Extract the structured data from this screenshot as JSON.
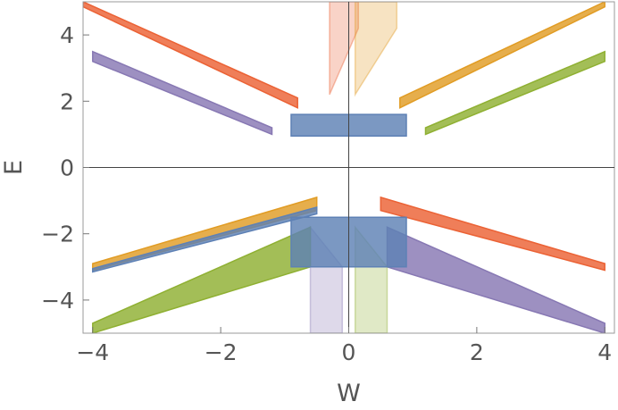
{
  "chart_data": {
    "type": "scatter",
    "title": "",
    "xlabel": "W",
    "ylabel": "E",
    "xlim": [
      -4.15,
      4.15
    ],
    "ylim": [
      -5,
      5
    ],
    "x_ticks": [
      -4,
      -2,
      0,
      2,
      4
    ],
    "y_ticks": [
      -4,
      -2,
      0,
      2,
      4
    ],
    "x_tick_labels": [
      "−4",
      "−2",
      "0",
      "2",
      "4"
    ],
    "y_tick_labels": [
      "−4",
      "−2",
      "0",
      "2",
      "4"
    ],
    "grid": false,
    "legend": "none",
    "frame": true,
    "origin_axes": true,
    "palette": {
      "blue": "#5E81B5",
      "orange": "#E19C24",
      "green": "#8FB032",
      "red": "#EB6235",
      "purple": "#8778B3"
    },
    "series": [
      {
        "color": "#EB6235",
        "bands": [
          {
            "x": [
              -4.15,
              -0.8
            ],
            "y_lo": [
              4.85,
              1.8
            ],
            "y_hi": [
              5.0,
              2.1
            ]
          },
          {
            "x": [
              -0.3,
              0.15
            ],
            "y_lo": [
              2.2,
              4.2
            ],
            "y_hi": [
              5.0,
              5.0
            ],
            "faint": true
          },
          {
            "x": [
              0.5,
              4.0
            ],
            "y_lo": [
              -1.3,
              -3.1
            ],
            "y_hi": [
              -0.9,
              -2.9
            ]
          }
        ]
      },
      {
        "color": "#E19C24",
        "bands": [
          {
            "x": [
              0.8,
              4.0
            ],
            "y_lo": [
              1.8,
              4.85
            ],
            "y_hi": [
              2.1,
              5.0
            ]
          },
          {
            "x": [
              0.1,
              0.75
            ],
            "y_lo": [
              2.2,
              4.2
            ],
            "y_hi": [
              5.0,
              5.0
            ],
            "faint": true
          },
          {
            "x": [
              -4.0,
              -0.5
            ],
            "y_lo": [
              -3.1,
              -1.3
            ],
            "y_hi": [
              -2.9,
              -0.9
            ]
          }
        ]
      },
      {
        "color": "#8778B3",
        "bands": [
          {
            "x": [
              -4.0,
              -1.2
            ],
            "y_lo": [
              3.2,
              1.0
            ],
            "y_hi": [
              3.5,
              1.2
            ]
          },
          {
            "x": [
              -0.6,
              -0.1
            ],
            "y_lo": [
              -5.0,
              -5.0
            ],
            "y_hi": [
              -1.8,
              -3.0
            ],
            "faint": true
          },
          {
            "x": [
              0.6,
              4.0
            ],
            "y_lo": [
              -3.0,
              -5.0
            ],
            "y_hi": [
              -1.8,
              -4.7
            ]
          }
        ]
      },
      {
        "color": "#8FB032",
        "bands": [
          {
            "x": [
              1.2,
              4.0
            ],
            "y_lo": [
              1.0,
              3.2
            ],
            "y_hi": [
              1.2,
              3.5
            ]
          },
          {
            "x": [
              0.1,
              0.6
            ],
            "y_lo": [
              -5.0,
              -5.0
            ],
            "y_hi": [
              -1.8,
              -3.0
            ],
            "faint": true
          },
          {
            "x": [
              -4.0,
              -0.6
            ],
            "y_lo": [
              -5.0,
              -3.0
            ],
            "y_hi": [
              -4.7,
              -1.8
            ]
          }
        ]
      },
      {
        "color": "#5E81B5",
        "bands": [
          {
            "x": [
              -0.9,
              0.9
            ],
            "y_lo": [
              0.95,
              0.95
            ],
            "y_hi": [
              1.6,
              1.6
            ]
          },
          {
            "x": [
              -0.9,
              0.9
            ],
            "y_lo": [
              -3.0,
              -3.0
            ],
            "y_hi": [
              -1.5,
              -1.5
            ]
          },
          {
            "x": [
              -4.0,
              -0.5
            ],
            "y_lo": [
              -3.15,
              -1.4
            ],
            "y_hi": [
              -3.05,
              -1.2
            ]
          }
        ]
      }
    ]
  }
}
